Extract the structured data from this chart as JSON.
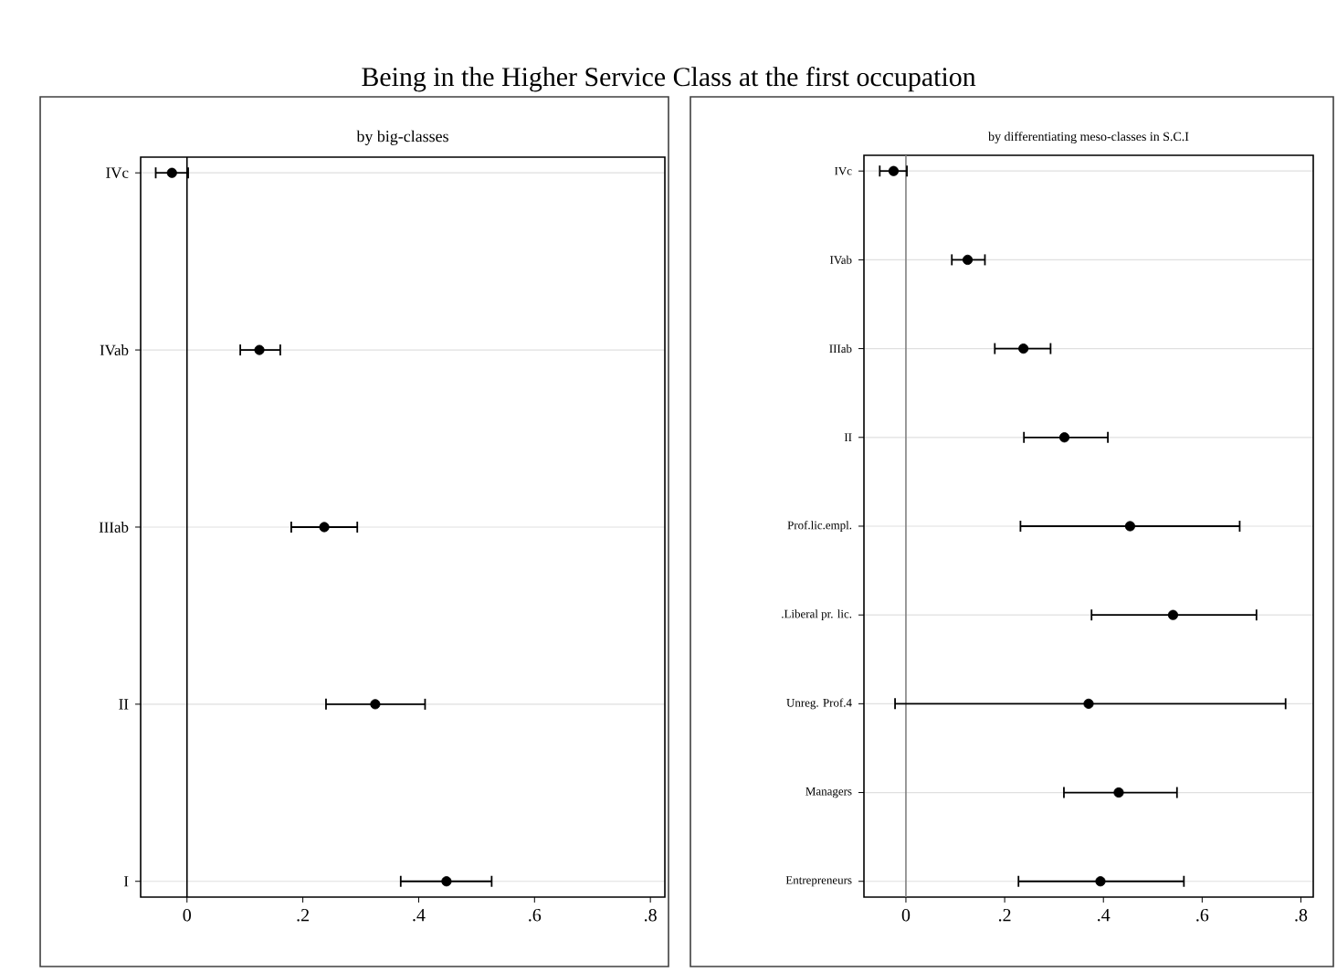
{
  "chart_data": [
    {
      "type": "scatter",
      "orientation": "horizontal",
      "title": "Being in the Higher Service Class at the first occupation",
      "subtitle": "by big-classes",
      "categories": [
        "IVc",
        "IVab",
        "IIIab",
        "II",
        "I"
      ],
      "values": [
        -0.026,
        0.125,
        0.237,
        0.325,
        0.448
      ],
      "errors": [
        [
          -0.054,
          0.002
        ],
        [
          0.092,
          0.161
        ],
        [
          0.18,
          0.294
        ],
        [
          0.24,
          0.411
        ],
        [
          0.369,
          0.526
        ]
      ],
      "color": "#000000",
      "marker": "circle",
      "grid": "y",
      "xlim": [
        -0.08,
        0.825
      ],
      "xticks": [
        0,
        {
          "value": 0.2,
          "label": ".2"
        },
        {
          "value": 0.4,
          "label": ".4"
        },
        {
          "value": 0.6,
          "label": ".6"
        },
        {
          "value": 0.8,
          "label": ".8"
        }
      ],
      "ref_lines": [
        {
          "axis": "x",
          "value": 0,
          "color": "#000000"
        }
      ]
    },
    {
      "type": "scatter",
      "orientation": "horizontal",
      "subtitle": "by differentiating meso-classes in S.C.I",
      "categories": [
        "IVc",
        "IVab",
        "IIIab",
        "II",
        "Prof.lic.empl.",
        ".Liberal pr. lic.",
        "Unreg. Prof.4",
        "Managers",
        "Entrepreneurs"
      ],
      "values": [
        -0.025,
        0.125,
        0.238,
        0.321,
        0.454,
        0.541,
        0.37,
        0.431,
        0.394
      ],
      "errors": [
        [
          -0.053,
          0.002
        ],
        [
          0.093,
          0.16
        ],
        [
          0.18,
          0.293
        ],
        [
          0.239,
          0.409
        ],
        [
          0.232,
          0.676
        ],
        [
          0.376,
          0.71
        ],
        [
          -0.022,
          0.769
        ],
        [
          0.32,
          0.549
        ],
        [
          0.228,
          0.563
        ]
      ],
      "color": "#000000",
      "marker": "circle",
      "grid": "y",
      "xlim": [
        -0.085,
        0.825
      ],
      "xticks": [
        0,
        {
          "value": 0.2,
          "label": ".2"
        },
        {
          "value": 0.4,
          "label": ".4"
        },
        {
          "value": 0.6,
          "label": ".6"
        },
        {
          "value": 0.8,
          "label": ".8"
        }
      ],
      "ref_lines": [
        {
          "axis": "x",
          "value": 0,
          "color": "#808080"
        }
      ]
    }
  ]
}
